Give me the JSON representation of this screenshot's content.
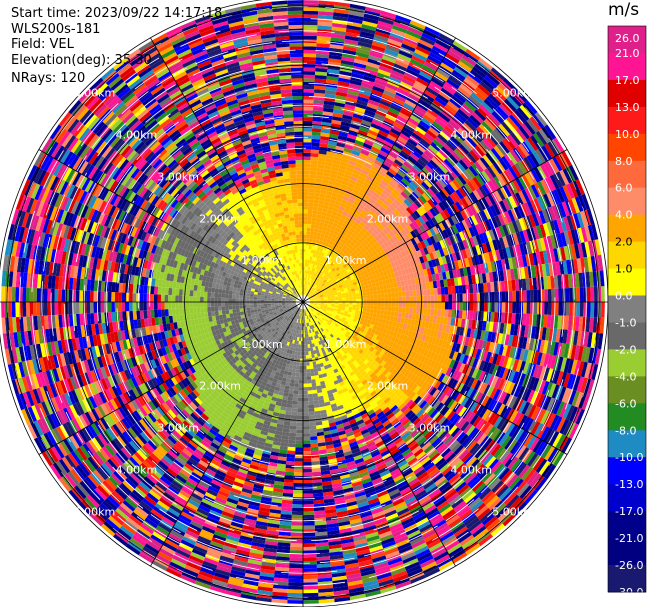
{
  "header": {
    "start_time": "Start time: 2023/09/22 14:17:18",
    "instrument": "WLS200s-181",
    "field": "Field: VEL",
    "elevation": "Elevation(deg): 35.30",
    "nrays": "NRays: 120"
  },
  "colorbar": {
    "unit": "m/s",
    "ticks": [
      "26.0",
      "21.0",
      "17.0",
      "13.0",
      "10.0",
      "8.0",
      "6.0",
      "4.0",
      "2.0",
      "1.0",
      "0.0",
      "-1.0",
      "-2.0",
      "-4.0",
      "-6.0",
      "-8.0",
      "-10.0",
      "-13.0",
      "-17.0",
      "-21.0",
      "-26.0",
      "-30.0"
    ],
    "colors": [
      "#e0208a",
      "#ff1493",
      "#e00000",
      "#ff1a1a",
      "#ff4500",
      "#ff6a3c",
      "#ff8c69",
      "#ffa500",
      "#ffd700",
      "#ffff00",
      "#808080",
      "#696969",
      "#9acd32",
      "#6b8e23",
      "#228b22",
      "#1e8bc3",
      "#0000ff",
      "#0000cd",
      "#00008b",
      "#000080",
      "#191970"
    ]
  },
  "chart_data": {
    "type": "heatmap",
    "title": "",
    "projection": "polar (PPI scan)",
    "field": "VEL",
    "units": "m/s",
    "nrays": 120,
    "elevation_deg": 35.3,
    "range_rings_km": [
      1.0,
      2.0,
      3.0,
      4.0,
      5.0
    ],
    "ring_labels": [
      "1.00km",
      "2.00km",
      "3.00km",
      "4.00km",
      "5.00km"
    ],
    "value_range": [
      -30.0,
      26.0
    ],
    "radial_wind_profile": [
      {
        "range_km": 0.5,
        "description_value": 0.0
      },
      {
        "range_km": 1.5,
        "description_value": 2.0
      },
      {
        "range_km": 2.5,
        "description_value": 3.0
      }
    ]
  }
}
